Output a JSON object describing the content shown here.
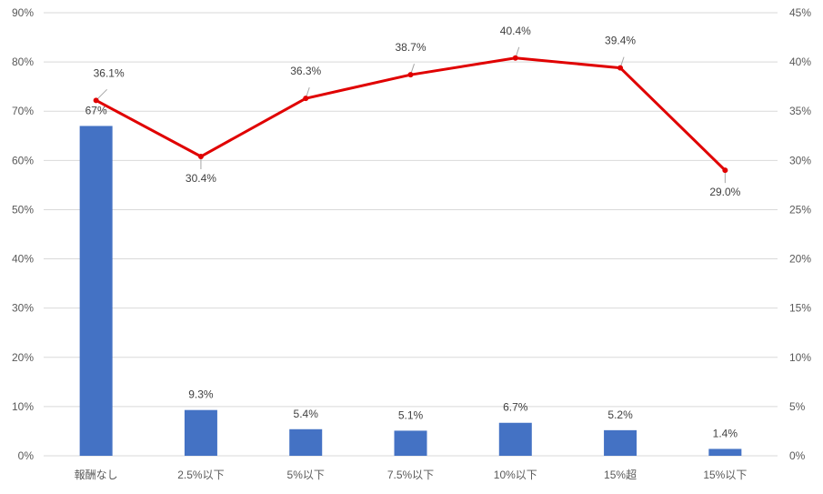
{
  "chart_data": {
    "type": "bar",
    "categories": [
      "報酬なし",
      "2.5%以下",
      "5%以下",
      "7.5%以下",
      "10%以下",
      "15%超",
      "15%以下"
    ],
    "series": [
      {
        "type": "bar",
        "axis": "left",
        "color": "#4472c4",
        "values": [
          67,
          9.3,
          5.4,
          5.1,
          6.7,
          5.2,
          1.4
        ],
        "labels": [
          "67%",
          "9.3%",
          "5.4%",
          "5.1%",
          "6.7%",
          "5.2%",
          "1.4%"
        ]
      },
      {
        "type": "line",
        "axis": "right",
        "color": "#e00000",
        "values": [
          36.1,
          30.4,
          36.3,
          38.7,
          40.4,
          39.4,
          29.0
        ],
        "labels": [
          "36.1%",
          "30.4%",
          "36.3%",
          "38.7%",
          "40.4%",
          "39.4%",
          "29.0%"
        ]
      }
    ],
    "y_left": {
      "range": [
        0,
        90
      ],
      "ticks": [
        0,
        10,
        20,
        30,
        40,
        50,
        60,
        70,
        80,
        90
      ],
      "tick_labels": [
        "0%",
        "10%",
        "20%",
        "30%",
        "40%",
        "50%",
        "60%",
        "70%",
        "80%",
        "90%"
      ]
    },
    "y_right": {
      "range": [
        0,
        45
      ],
      "ticks": [
        0,
        5,
        10,
        15,
        20,
        25,
        30,
        35,
        40,
        45
      ],
      "tick_labels": [
        "0%",
        "5%",
        "10%",
        "15%",
        "20%",
        "25%",
        "30%",
        "35%",
        "40%",
        "45%"
      ]
    },
    "grid": true,
    "legend": "none"
  }
}
